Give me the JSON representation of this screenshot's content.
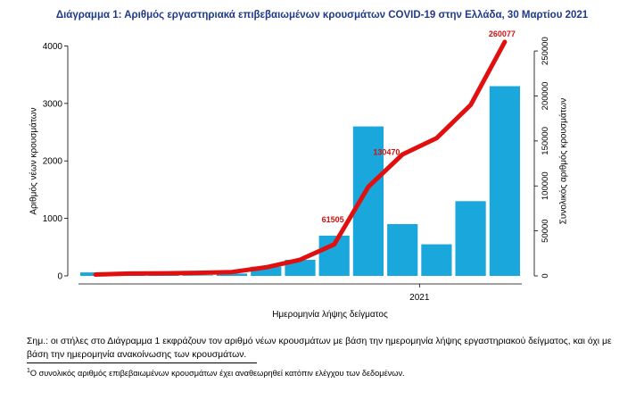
{
  "title": "Διάγραμμα 1: Αριθμός εργαστηριακά επιβεβαιωμένων κρουσμάτων COVID-19 στην Ελλάδα, 30 Μαρτίου 2021",
  "note": "Σημ.: οι στήλες στο Διάγραμμα 1 εκφράζουν τον αριθμό νέων κρουσμάτων με βάση την ημερομηνία λήψης εργαστηριακού δείγματος, και όχι με βάση την ημερομηνία ανακοίνωσης των κρουσμάτων.",
  "footnote": {
    "marker": "1",
    "text": "Ο συνολικός αριθμός επιβεβαιωμένων κρουσμάτων έχει αναθεωρηθεί κατόπιν ελέγχου των δεδομένων."
  },
  "colors": {
    "bars": "#1aa7dc",
    "cumulative": "#e01010",
    "title": "#1f3a8a",
    "annotation": "#d01010"
  },
  "chart_data": {
    "type": "bar",
    "title": "Διάγραμμα 1: Αριθμός εργαστηριακά επιβεβαιωμένων κρουσμάτων COVID-19 στην Ελλάδα, 30 Μαρτίου 2021",
    "xlabel": "Ημερομηνία λήψης δείγματος",
    "ylabel": "Αριθμός νέων κρουσμάτων",
    "y2label": "Συνολικός αριθμός κρουσμάτων",
    "x_tick_labels": [
      "2021"
    ],
    "y_ticks": [
      0,
      1000,
      2000,
      3000,
      4000
    ],
    "y2_ticks": [
      0,
      50000,
      100000,
      150000,
      200000,
      250000
    ],
    "ylim": [
      0,
      4100
    ],
    "y2lim": [
      0,
      262000
    ],
    "grid": false,
    "series": [
      {
        "name": "",
        "kind": "bar",
        "axis": "left",
        "x": [
          "2020-03",
          "2020-04",
          "2020-05",
          "2020-06",
          "2020-07",
          "2020-08",
          "2020-09",
          "2020-10",
          "2020-11",
          "2020-12",
          "2021-01",
          "2021-02",
          "2021-03"
        ],
        "values": [
          60,
          30,
          10,
          10,
          40,
          160,
          280,
          700,
          2600,
          900,
          550,
          1300,
          3300
        ]
      },
      {
        "name": "",
        "kind": "line",
        "axis": "right",
        "x": [
          "2020-03",
          "2020-04",
          "2020-05",
          "2020-06",
          "2020-07",
          "2020-08",
          "2020-09",
          "2020-10",
          "2020-11",
          "2020-12",
          "2021-01",
          "2021-02",
          "2021-03"
        ],
        "values": [
          1500,
          2600,
          2900,
          3400,
          4300,
          9500,
          18000,
          35000,
          99000,
          135000,
          153000,
          190000,
          260077
        ]
      }
    ],
    "annotations": [
      {
        "text": "260077",
        "value": 260077
      },
      {
        "text": "130470",
        "value": 130470
      },
      {
        "text": "61505",
        "value": 61505
      }
    ]
  }
}
